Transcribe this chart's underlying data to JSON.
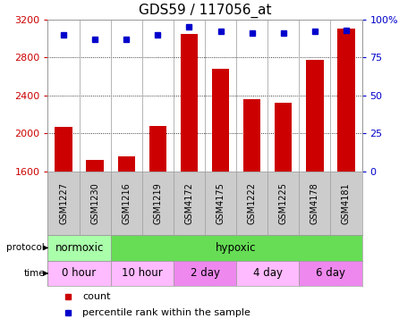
{
  "title": "GDS59 / 117056_at",
  "samples": [
    "GSM1227",
    "GSM1230",
    "GSM1216",
    "GSM1219",
    "GSM4172",
    "GSM4175",
    "GSM1222",
    "GSM1225",
    "GSM4178",
    "GSM4181"
  ],
  "counts": [
    2070,
    1720,
    1760,
    2080,
    3050,
    2680,
    2360,
    2320,
    2770,
    3100
  ],
  "percentiles": [
    90,
    87,
    87,
    90,
    95,
    92,
    91,
    91,
    92,
    93
  ],
  "ylim_left": [
    1600,
    3200
  ],
  "ylim_right": [
    0,
    100
  ],
  "yticks_left": [
    1600,
    2000,
    2400,
    2800,
    3200
  ],
  "yticks_right": [
    0,
    25,
    50,
    75,
    100
  ],
  "ytick_labels_right": [
    "0",
    "25",
    "50",
    "75",
    "100%"
  ],
  "bar_color": "#cc0000",
  "dot_color": "#0000cc",
  "protocol_row": [
    {
      "label": "normoxic",
      "span": [
        0,
        2
      ],
      "color": "#aaffaa"
    },
    {
      "label": "hypoxic",
      "span": [
        2,
        10
      ],
      "color": "#66dd55"
    }
  ],
  "time_row": [
    {
      "label": "0 hour",
      "span": [
        0,
        2
      ],
      "color": "#ffbbff"
    },
    {
      "label": "10 hour",
      "span": [
        2,
        4
      ],
      "color": "#ffbbff"
    },
    {
      "label": "2 day",
      "span": [
        4,
        6
      ],
      "color": "#ee88ee"
    },
    {
      "label": "4 day",
      "span": [
        6,
        8
      ],
      "color": "#ffbbff"
    },
    {
      "label": "6 day",
      "span": [
        8,
        10
      ],
      "color": "#ee88ee"
    }
  ],
  "legend_items": [
    {
      "label": "count",
      "color": "#cc0000"
    },
    {
      "label": "percentile rank within the sample",
      "color": "#0000cc"
    }
  ],
  "sample_bg_color": "#cccccc",
  "sample_border_color": "#999999",
  "left_axis_color": "#cc0000",
  "right_axis_color": "#0000cc",
  "title_fontsize": 11,
  "tick_fontsize": 8,
  "sample_fontsize": 7,
  "row_fontsize": 8.5,
  "legend_fontsize": 8
}
